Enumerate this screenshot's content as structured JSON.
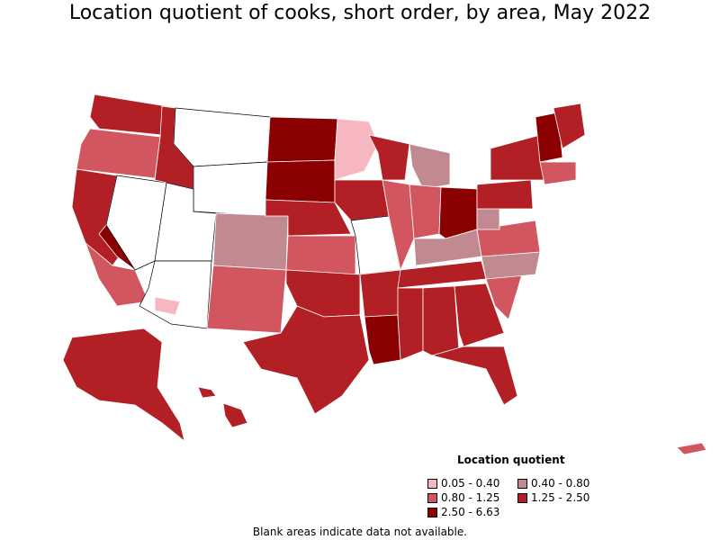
{
  "title": "Location quotient of cooks, short order, by area, May 2022",
  "footnote": "Blank areas indicate data not available.",
  "legend": {
    "title": "Location quotient",
    "items": [
      {
        "label": "0.05 - 0.40",
        "color": "#f7b7c0"
      },
      {
        "label": "0.40 - 0.80",
        "color": "#c08a90"
      },
      {
        "label": "0.80 - 1.25",
        "color": "#d2565f"
      },
      {
        "label": "1.25 - 2.50",
        "color": "#b21f24"
      },
      {
        "label": "2.50 - 6.63",
        "color": "#8b0000"
      }
    ]
  },
  "colors": {
    "stroke": "#ffffff",
    "blank": "#ffffff",
    "outline": "#000000"
  },
  "map_regions": [
    {
      "name": "washington",
      "class": "1.25 - 2.50"
    },
    {
      "name": "oregon",
      "class": "0.80 - 1.25"
    },
    {
      "name": "california-north",
      "class": "1.25 - 2.50"
    },
    {
      "name": "california-central",
      "class": "2.50 - 6.63"
    },
    {
      "name": "california-south",
      "class": "0.80 - 1.25"
    },
    {
      "name": "nevada",
      "class": "blank"
    },
    {
      "name": "idaho",
      "class": "1.25 - 2.50"
    },
    {
      "name": "montana",
      "class": "blank"
    },
    {
      "name": "wyoming",
      "class": "blank"
    },
    {
      "name": "utah",
      "class": "blank"
    },
    {
      "name": "arizona",
      "class": "blank"
    },
    {
      "name": "arizona-south",
      "class": "0.05 - 0.40"
    },
    {
      "name": "colorado",
      "class": "0.40 - 0.80"
    },
    {
      "name": "new-mexico",
      "class": "0.80 - 1.25"
    },
    {
      "name": "north-dakota",
      "class": "2.50 - 6.63"
    },
    {
      "name": "south-dakota",
      "class": "2.50 - 6.63"
    },
    {
      "name": "nebraska",
      "class": "1.25 - 2.50"
    },
    {
      "name": "kansas",
      "class": "0.80 - 1.25"
    },
    {
      "name": "oklahoma",
      "class": "1.25 - 2.50"
    },
    {
      "name": "texas",
      "class": "1.25 - 2.50"
    },
    {
      "name": "minnesota",
      "class": "0.05 - 0.40"
    },
    {
      "name": "iowa",
      "class": "1.25 - 2.50"
    },
    {
      "name": "missouri",
      "class": "blank"
    },
    {
      "name": "arkansas",
      "class": "1.25 - 2.50"
    },
    {
      "name": "louisiana",
      "class": "2.50 - 6.63"
    },
    {
      "name": "wisconsin",
      "class": "1.25 - 2.50"
    },
    {
      "name": "illinois",
      "class": "0.80 - 1.25"
    },
    {
      "name": "michigan",
      "class": "0.40 - 0.80"
    },
    {
      "name": "indiana",
      "class": "0.80 - 1.25"
    },
    {
      "name": "ohio",
      "class": "2.50 - 6.63"
    },
    {
      "name": "kentucky",
      "class": "0.40 - 0.80"
    },
    {
      "name": "tennessee",
      "class": "1.25 - 2.50"
    },
    {
      "name": "mississippi",
      "class": "1.25 - 2.50"
    },
    {
      "name": "alabama",
      "class": "1.25 - 2.50"
    },
    {
      "name": "georgia",
      "class": "1.25 - 2.50"
    },
    {
      "name": "florida",
      "class": "1.25 - 2.50"
    },
    {
      "name": "south-carolina",
      "class": "0.80 - 1.25"
    },
    {
      "name": "north-carolina",
      "class": "0.40 - 0.80"
    },
    {
      "name": "virginia",
      "class": "0.80 - 1.25"
    },
    {
      "name": "west-virginia",
      "class": "0.40 - 0.80"
    },
    {
      "name": "pennsylvania",
      "class": "1.25 - 2.50"
    },
    {
      "name": "new-york",
      "class": "1.25 - 2.50"
    },
    {
      "name": "vermont-new-hampshire",
      "class": "2.50 - 6.63"
    },
    {
      "name": "maine",
      "class": "1.25 - 2.50"
    },
    {
      "name": "new-england-south",
      "class": "0.80 - 1.25"
    },
    {
      "name": "alaska",
      "class": "1.25 - 2.50"
    },
    {
      "name": "hawaii",
      "class": "1.25 - 2.50"
    },
    {
      "name": "puerto-rico",
      "class": "0.80 - 1.25"
    }
  ]
}
